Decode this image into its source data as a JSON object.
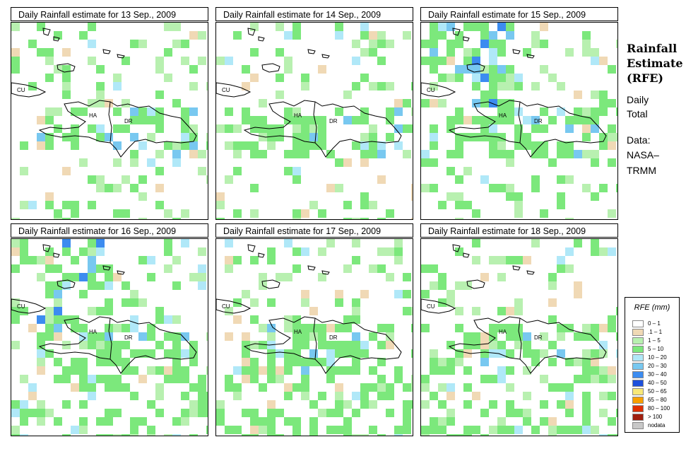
{
  "panels": [
    {
      "title": "Daily Rainfall estimate for  13 Sep., 2009",
      "labels": {
        "cu": "CU",
        "ha": "HA",
        "dr": "DR"
      }
    },
    {
      "title": "Daily Rainfall estimate for  14 Sep., 2009",
      "labels": {
        "cu": "CU",
        "ha": "HA",
        "dr": "DR"
      }
    },
    {
      "title": "Daily Rainfall estimate for  15 Sep., 2009",
      "labels": {
        "cu": "CU",
        "ha": "HA",
        "dr": "DR"
      }
    },
    {
      "title": "Daily Rainfall estimate for  16 Sep., 2009",
      "labels": {
        "cu": "CU",
        "ha": "HA",
        "dr": "DR"
      }
    },
    {
      "title": "Daily Rainfall estimate for  17 Sep., 2009",
      "labels": {
        "cu": "CU",
        "ha": "HA",
        "dr": "DR"
      }
    },
    {
      "title": "Daily Rainfall estimate for  18 Sep., 2009",
      "labels": {
        "cu": "CU",
        "ha": "HA",
        "dr": "DR"
      }
    }
  ],
  "side": {
    "title_line1": "Rainfall",
    "title_line2": "Estimate",
    "title_line3": "(RFE)",
    "daily": "Daily",
    "total": "Total",
    "data": "Data:",
    "nasa": "NASA–",
    "trmm": "TRMM"
  },
  "legend": {
    "title": "RFE (mm)",
    "items": [
      {
        "label": "0 – 1",
        "color": "#ffffff"
      },
      {
        "label": ".1 – 1",
        "color": "#f0d9b5"
      },
      {
        "label": "1 – 5",
        "color": "#b8f0b0"
      },
      {
        "label": "5 – 10",
        "color": "#7ce87c"
      },
      {
        "label": "10 – 20",
        "color": "#b0e8f8"
      },
      {
        "label": "20 – 30",
        "color": "#78c8f0"
      },
      {
        "label": "30 – 40",
        "color": "#3c8cf0"
      },
      {
        "label": "40 – 50",
        "color": "#1e50dc"
      },
      {
        "label": "50 – 65",
        "color": "#f8e878"
      },
      {
        "label": "65 – 80",
        "color": "#f8a000"
      },
      {
        "label": "80 – 100",
        "color": "#e03000"
      },
      {
        "label": "> 100",
        "color": "#a02010"
      },
      {
        "label": "nodata",
        "color": "#c8c8c8"
      }
    ]
  }
}
